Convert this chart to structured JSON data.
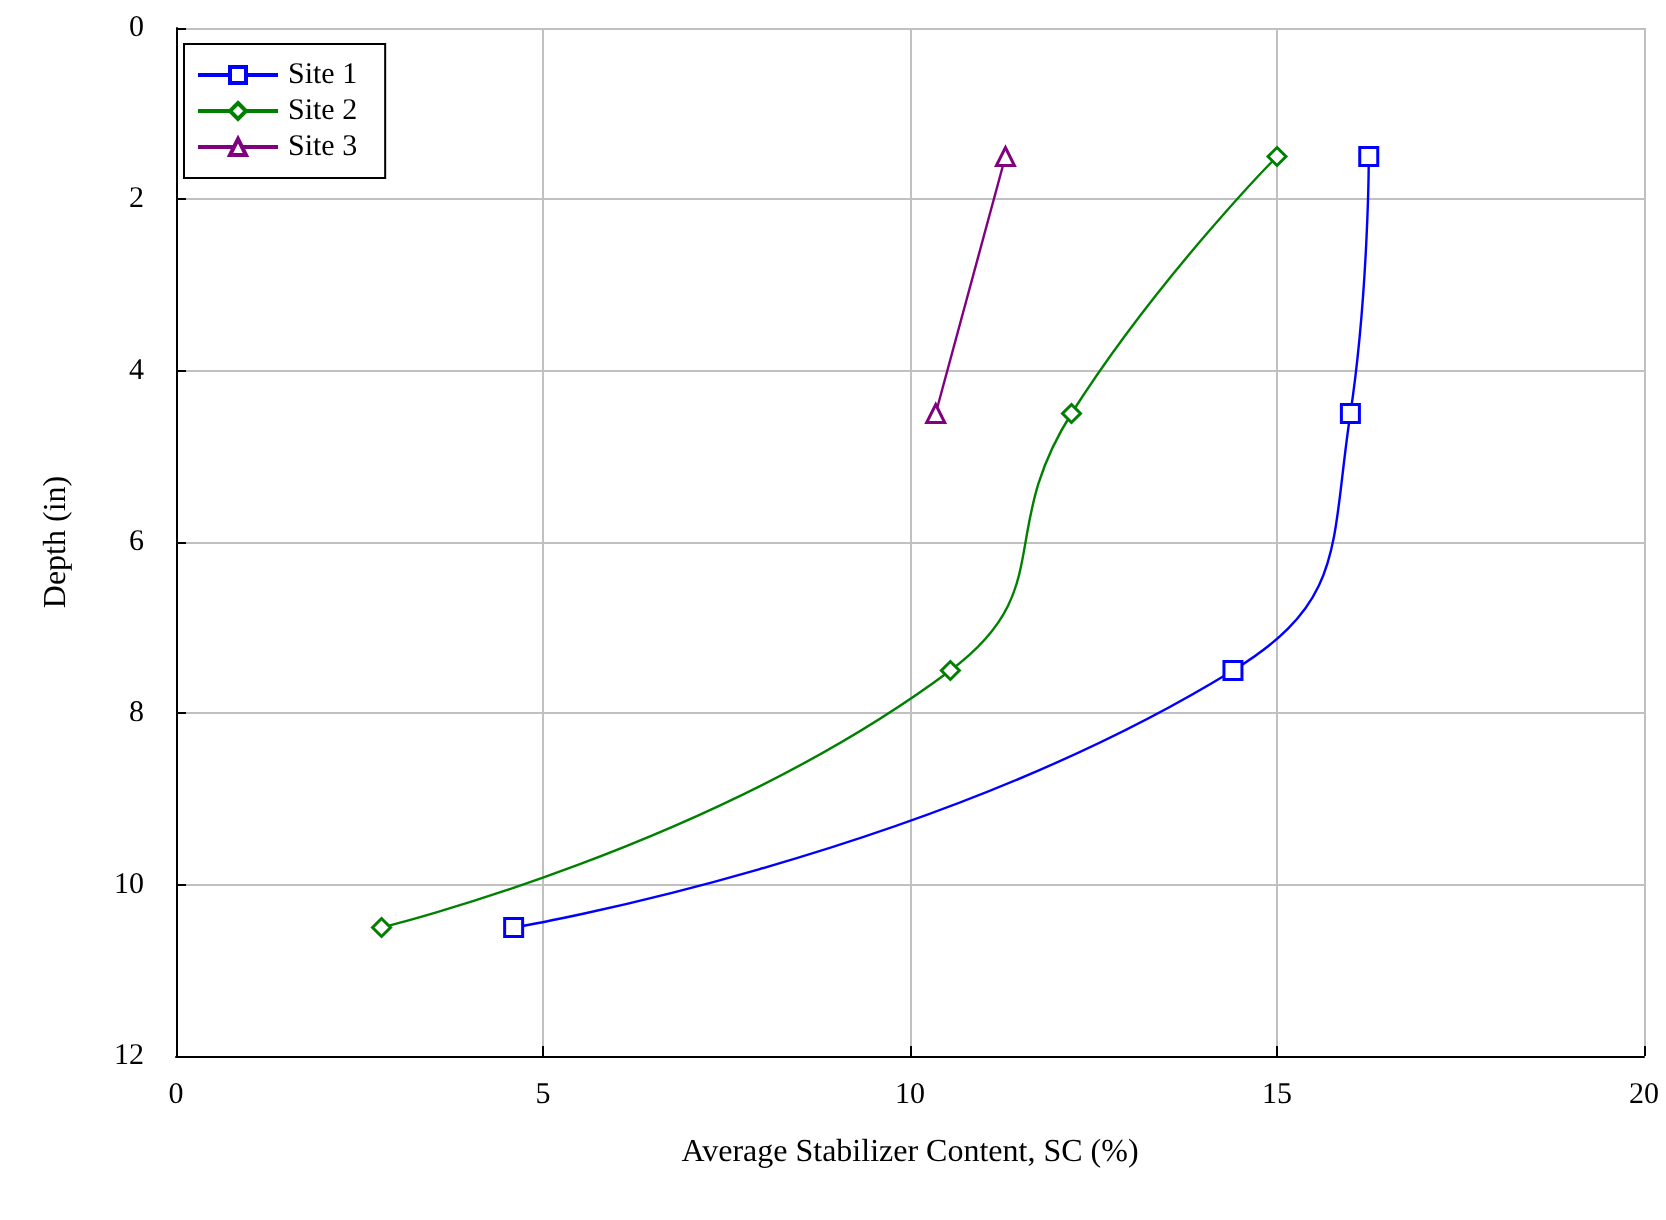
{
  "chart_data": {
    "type": "line",
    "xlabel": "Average Stabilizer Content, SC (%)",
    "ylabel": "Depth (in)",
    "xlim": [
      0,
      20
    ],
    "xticks": [
      0,
      5,
      10,
      15,
      20
    ],
    "ylim": [
      12,
      0
    ],
    "yticks": [
      0,
      2,
      4,
      6,
      8,
      10,
      12
    ],
    "grid": true,
    "legend": "top left",
    "line_style": "solid",
    "series": [
      {
        "name": "Site 1",
        "color": "#0000ff",
        "marker": "square",
        "x": [
          16.25,
          16.0,
          14.4,
          4.6
        ],
        "values": [
          1.5,
          4.5,
          7.5,
          10.5
        ]
      },
      {
        "name": "Site 2",
        "color": "#008000",
        "marker": "diamond",
        "x": [
          15.0,
          12.2,
          10.55,
          2.8
        ],
        "values": [
          1.5,
          4.5,
          7.5,
          10.5
        ]
      },
      {
        "name": "Site 3",
        "color": "#800080",
        "marker": "triangle",
        "x": [
          11.3,
          10.35
        ],
        "values": [
          1.5,
          4.5
        ]
      }
    ]
  }
}
